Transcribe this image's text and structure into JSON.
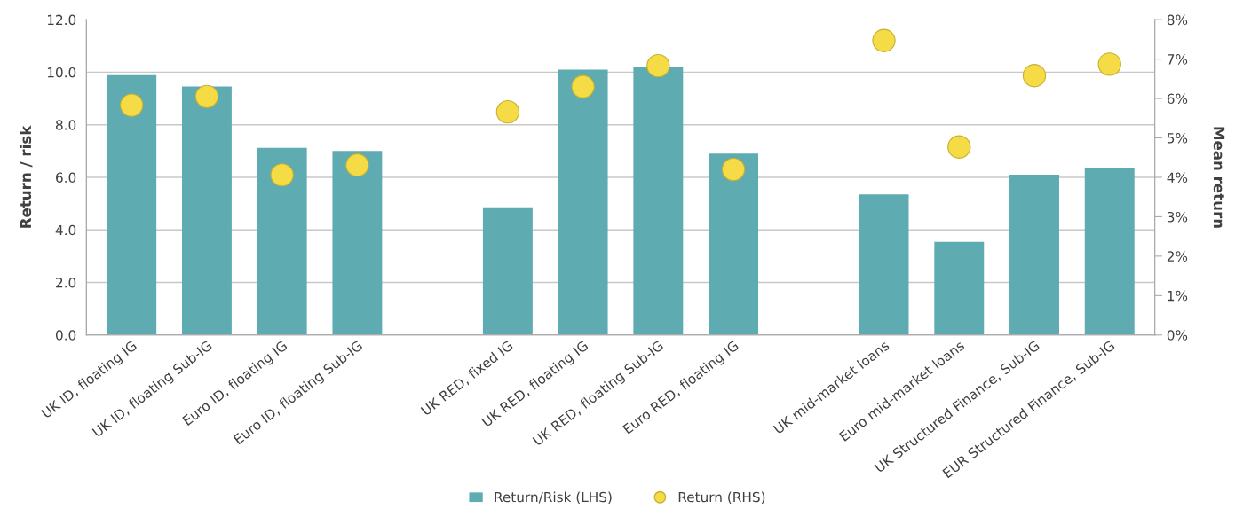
{
  "chart_data": {
    "type": "bar",
    "categories": [
      "UK ID, floating IG",
      "UK ID, floating Sub-IG",
      "Euro ID, floating IG",
      "Euro ID, floating Sub-IG",
      null,
      "UK RED, fixed IG",
      "UK RED, floating IG",
      "UK RED, floating Sub-IG",
      "Euro RED, floating IG",
      null,
      "UK mid-market loans",
      "Euro mid-market loans",
      "UK Structured Finance, Sub-IG",
      "EUR Structured Finance, Sub-IG"
    ],
    "series": [
      {
        "name": "Return/Risk (LHS)",
        "color": "#5eabb1",
        "values": [
          9.89,
          9.46,
          7.12,
          7.0,
          null,
          4.86,
          10.1,
          10.2,
          6.9,
          null,
          5.35,
          3.54,
          6.1,
          6.36
        ]
      },
      {
        "name": "Return (RHS)",
        "type": "scatter",
        "axis": "y2",
        "color": "#f5dc47",
        "values": [
          5.83,
          6.05,
          4.06,
          4.31,
          null,
          5.66,
          6.3,
          6.83,
          4.2,
          null,
          7.47,
          4.77,
          6.58,
          6.87
        ]
      }
    ],
    "ylabel": "Return / risk",
    "y2label": "Mean return",
    "ylim": [
      0,
      12
    ],
    "yticks": [
      {
        "value": 0,
        "label": "0.0"
      },
      {
        "value": 2,
        "label": "2.0"
      },
      {
        "value": 4,
        "label": "4.0"
      },
      {
        "value": 6,
        "label": "6.0"
      },
      {
        "value": 8,
        "label": "8.0"
      },
      {
        "value": 10,
        "label": "10.0"
      },
      {
        "value": 12,
        "label": "12.0"
      }
    ],
    "y2lim": [
      0,
      8
    ],
    "y2ticks": [
      {
        "value": 0,
        "label": "0%"
      },
      {
        "value": 1,
        "label": "1%"
      },
      {
        "value": 2,
        "label": "2%"
      },
      {
        "value": 3,
        "label": "3%"
      },
      {
        "value": 4,
        "label": "4%"
      },
      {
        "value": 5,
        "label": "5%"
      },
      {
        "value": 6,
        "label": "6%"
      },
      {
        "value": 7,
        "label": "7%"
      },
      {
        "value": 8,
        "label": "8%"
      }
    ],
    "grid": "y",
    "legend": "bottom",
    "marker": "circle"
  }
}
